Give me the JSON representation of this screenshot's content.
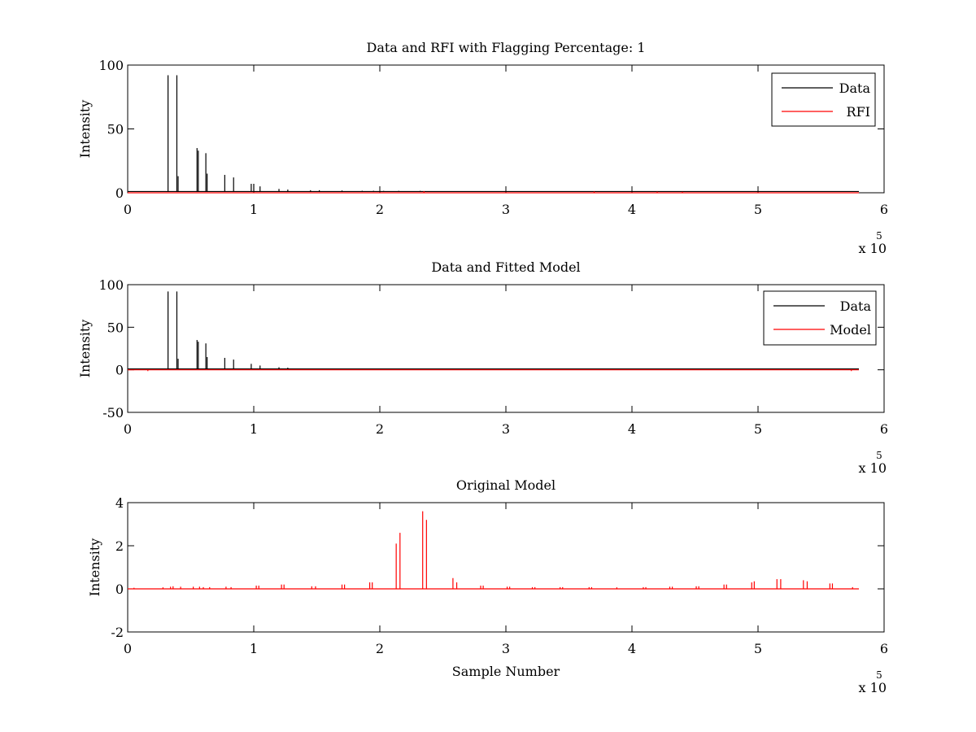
{
  "chart_data": [
    {
      "type": "line",
      "title": "Data and RFI with Flagging Percentage: 1",
      "xlabel": "",
      "ylabel": "Intensity",
      "xlim": [
        0,
        6
      ],
      "ylim": [
        0,
        100
      ],
      "x_ticks": [
        "0",
        "1",
        "2",
        "3",
        "4",
        "5",
        "6"
      ],
      "y_ticks": [
        {
          "value": 0,
          "label": "0"
        },
        {
          "value": 50,
          "label": "50"
        },
        {
          "value": 100,
          "label": "100"
        }
      ],
      "x_multiplier": {
        "base": "x 10",
        "exponent": "5"
      },
      "legend_position": "top-right",
      "grid": false,
      "series": [
        {
          "name": "Data",
          "color": "#000000",
          "baseline": 1,
          "spikes": [
            [
              0.32,
              92
            ],
            [
              0.39,
              92
            ],
            [
              0.4,
              13
            ],
            [
              0.55,
              35
            ],
            [
              0.56,
              33
            ],
            [
              0.62,
              31
            ],
            [
              0.63,
              15
            ],
            [
              0.77,
              14
            ],
            [
              0.84,
              12
            ],
            [
              0.98,
              7
            ],
            [
              1.0,
              7
            ],
            [
              1.05,
              5
            ],
            [
              1.2,
              3
            ],
            [
              1.27,
              2.5
            ],
            [
              1.45,
              2
            ],
            [
              1.52,
              2
            ],
            [
              1.7,
              1.8
            ],
            [
              1.86,
              1.6
            ],
            [
              1.95,
              1.6
            ],
            [
              2.03,
              1.5
            ],
            [
              2.15,
              1.5
            ],
            [
              2.32,
              1.5
            ]
          ]
        },
        {
          "name": "RFI",
          "color": "#ff0000",
          "baseline": 0,
          "spikes": [
            [
              2.35,
              1.2
            ],
            [
              3.7,
              1.0
            ],
            [
              4.2,
              0.9
            ],
            [
              4.4,
              0.8
            ]
          ]
        }
      ]
    },
    {
      "type": "line",
      "title": "Data and Fitted Model",
      "xlabel": "",
      "ylabel": "Intensity",
      "xlim": [
        0,
        6
      ],
      "ylim": [
        -50,
        100
      ],
      "x_ticks": [
        "0",
        "1",
        "2",
        "3",
        "4",
        "5",
        "6"
      ],
      "y_ticks": [
        {
          "value": -50,
          "label": "-50"
        },
        {
          "value": 0,
          "label": "0"
        },
        {
          "value": 50,
          "label": "50"
        },
        {
          "value": 100,
          "label": "100"
        }
      ],
      "x_multiplier": {
        "base": "x 10",
        "exponent": "5"
      },
      "legend_position": "top-right",
      "grid": false,
      "series": [
        {
          "name": "Data",
          "color": "#000000",
          "baseline": 1,
          "spikes": [
            [
              0.32,
              92
            ],
            [
              0.39,
              92
            ],
            [
              0.4,
              13
            ],
            [
              0.55,
              35
            ],
            [
              0.56,
              33
            ],
            [
              0.62,
              31
            ],
            [
              0.63,
              15
            ],
            [
              0.77,
              14
            ],
            [
              0.84,
              12
            ],
            [
              0.98,
              7
            ],
            [
              1.05,
              5
            ],
            [
              1.2,
              3
            ],
            [
              1.27,
              2.5
            ]
          ]
        },
        {
          "name": "Model",
          "color": "#ff0000",
          "baseline": 0,
          "spikes": [
            [
              0.16,
              -1.5
            ],
            [
              5.74,
              -1.5
            ]
          ]
        }
      ]
    },
    {
      "type": "line",
      "title": "Original Model",
      "xlabel": "Sample Number",
      "ylabel": "Intensity",
      "xlim": [
        0,
        6
      ],
      "ylim": [
        -2,
        4
      ],
      "x_ticks": [
        "0",
        "1",
        "2",
        "3",
        "4",
        "5",
        "6"
      ],
      "y_ticks": [
        {
          "value": -2,
          "label": "-2"
        },
        {
          "value": 0,
          "label": "0"
        },
        {
          "value": 2,
          "label": "2"
        },
        {
          "value": 4,
          "label": "4"
        }
      ],
      "x_multiplier": {
        "base": "x 10",
        "exponent": "5"
      },
      "grid": false,
      "series": [
        {
          "color": "#ff0000",
          "baseline": 0,
          "spikes": [
            [
              0.05,
              0.05
            ],
            [
              0.28,
              0.07
            ],
            [
              0.34,
              0.1
            ],
            [
              0.36,
              0.12
            ],
            [
              0.42,
              0.1
            ],
            [
              0.52,
              0.1
            ],
            [
              0.57,
              0.1
            ],
            [
              0.6,
              0.08
            ],
            [
              0.65,
              0.08
            ],
            [
              0.78,
              0.1
            ],
            [
              0.82,
              0.08
            ],
            [
              1.02,
              0.15
            ],
            [
              1.04,
              0.15
            ],
            [
              1.22,
              0.2
            ],
            [
              1.24,
              0.2
            ],
            [
              1.46,
              0.12
            ],
            [
              1.49,
              0.12
            ],
            [
              1.7,
              0.2
            ],
            [
              1.72,
              0.2
            ],
            [
              1.92,
              0.3
            ],
            [
              1.94,
              0.3
            ],
            [
              2.13,
              2.1
            ],
            [
              2.16,
              2.6
            ],
            [
              2.34,
              3.6
            ],
            [
              2.37,
              3.2
            ],
            [
              2.58,
              0.5
            ],
            [
              2.61,
              0.3
            ],
            [
              2.8,
              0.15
            ],
            [
              2.82,
              0.15
            ],
            [
              3.01,
              0.1
            ],
            [
              3.03,
              0.1
            ],
            [
              3.21,
              0.08
            ],
            [
              3.23,
              0.08
            ],
            [
              3.43,
              0.08
            ],
            [
              3.45,
              0.08
            ],
            [
              3.66,
              0.08
            ],
            [
              3.68,
              0.08
            ],
            [
              3.88,
              0.07
            ],
            [
              4.09,
              0.08
            ],
            [
              4.11,
              0.08
            ],
            [
              4.3,
              0.1
            ],
            [
              4.32,
              0.1
            ],
            [
              4.51,
              0.12
            ],
            [
              4.53,
              0.12
            ],
            [
              4.73,
              0.2
            ],
            [
              4.75,
              0.2
            ],
            [
              4.95,
              0.3
            ],
            [
              4.97,
              0.35
            ],
            [
              5.15,
              0.45
            ],
            [
              5.18,
              0.45
            ],
            [
              5.36,
              0.4
            ],
            [
              5.39,
              0.35
            ],
            [
              5.57,
              0.25
            ],
            [
              5.59,
              0.25
            ],
            [
              5.75,
              0.08
            ]
          ]
        }
      ]
    }
  ]
}
